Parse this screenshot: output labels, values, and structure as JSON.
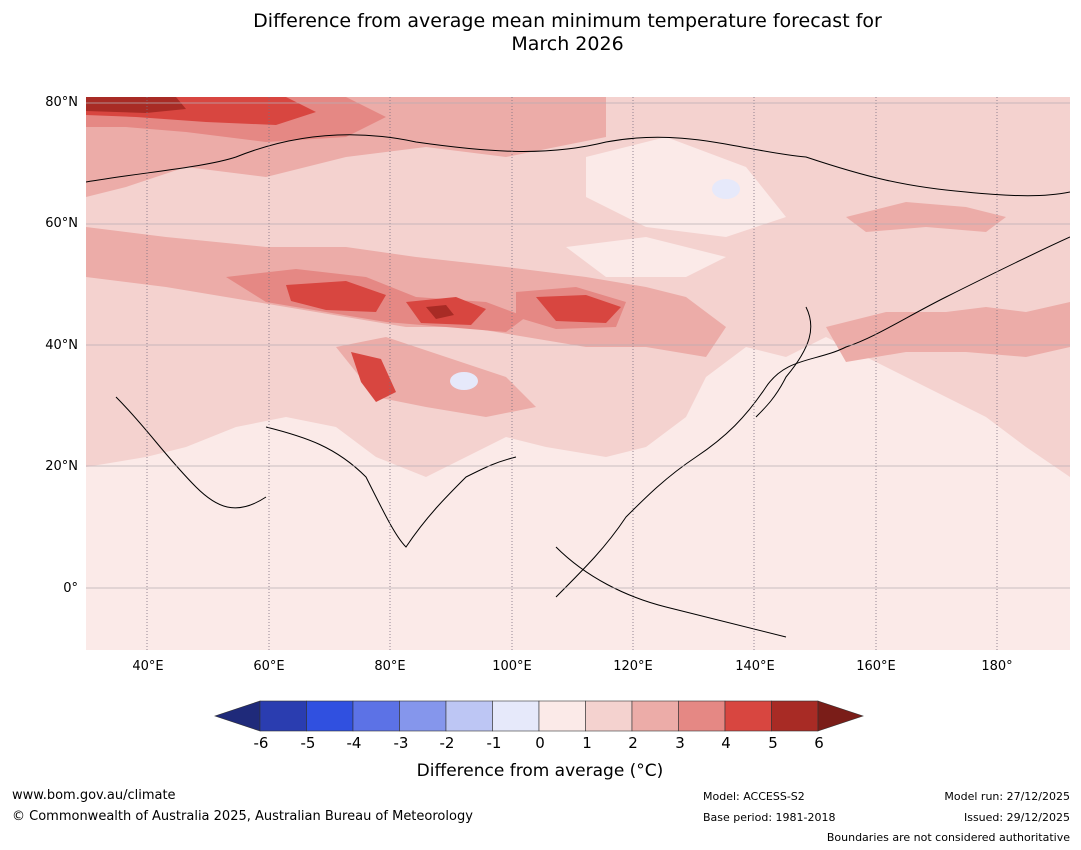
{
  "title": {
    "line1": "Difference from average mean minimum temperature forecast for",
    "line2": "March 2026"
  },
  "map": {
    "lat_labels": [
      "80°N",
      "60°N",
      "40°N",
      "20°N",
      "0°"
    ],
    "lon_labels": [
      "40°E",
      "60°E",
      "80°E",
      "100°E",
      "120°E",
      "140°E",
      "160°E",
      "180°"
    ],
    "lat_range": [
      -10,
      80
    ],
    "lon_range": [
      30,
      192
    ]
  },
  "colorbar": {
    "ticks": [
      "-6",
      "-5",
      "-4",
      "-3",
      "-2",
      "-1",
      "0",
      "1",
      "2",
      "3",
      "4",
      "5",
      "6"
    ],
    "colors": [
      "#1f2a7a",
      "#2a3db0",
      "#3050e0",
      "#5c72e6",
      "#8596ec",
      "#bdc6f4",
      "#e6e9fa",
      "#fbeae8",
      "#f4d2cf",
      "#ecaca8",
      "#e58884",
      "#d84640",
      "#a82b25",
      "#7a1d18"
    ],
    "label": "Difference from average (°C)"
  },
  "footer": {
    "website": "www.bom.gov.au/climate",
    "copyright": "© Commonwealth of Australia 2025, Australian Bureau of Meteorology",
    "model": "Model: ACCESS-S2",
    "base_period": "Base period: 1981-2018",
    "model_run": "Model run: 27/12/2025",
    "issued": "Issued: 29/12/2025",
    "disclaimer": "Boundaries are not considered authoritative"
  }
}
